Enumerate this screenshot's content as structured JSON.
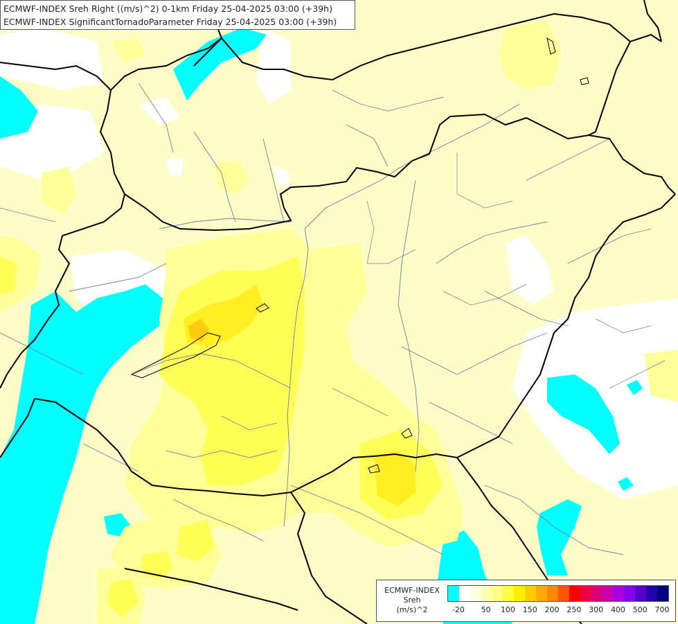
{
  "header": {
    "line1": "ECMWF-INDEX Sreh Right ((m/s)^2) 0-1km Friday 25-04-2025 03:00 (+39h)",
    "line2": "ECMWF-INDEX SignificantTornadoParameter Friday 25-04-2025 03:00 (+39h)"
  },
  "legend": {
    "line1": "ECMWF-INDEX",
    "line2": "Sreh",
    "line3": "(m/s)^2",
    "colors": [
      "#00ffff",
      "#ffffff",
      "#ffffe0",
      "#ffffb0",
      "#ffff80",
      "#ffff40",
      "#ffee00",
      "#ffcc00",
      "#ffaa00",
      "#ff8800",
      "#ff5500",
      "#ff0000",
      "#ee0044",
      "#dd0077",
      "#cc00aa",
      "#aa00dd",
      "#8800ee",
      "#5500cc",
      "#2200aa",
      "#000080"
    ],
    "ticks": [
      {
        "value": "-20",
        "index": 0.5
      },
      {
        "value": "50",
        "index": 3
      },
      {
        "value": "100",
        "index": 5
      },
      {
        "value": "150",
        "index": 7
      },
      {
        "value": "200",
        "index": 9
      },
      {
        "value": "250",
        "index": 11
      },
      {
        "value": "300",
        "index": 13
      },
      {
        "value": "400",
        "index": 15
      },
      {
        "value": "500",
        "index": 17
      },
      {
        "value": "700",
        "index": 19
      }
    ]
  },
  "fields": {
    "cyan": "#00ffff",
    "white": "#ffffff",
    "pale": "#fdfdc8",
    "light_yellow": "#ffff99",
    "mid_yellow": "#ffff55",
    "yellow": "#ffee22",
    "orange": "#ffcc11",
    "border": "#000000",
    "river": "#6c7ea0"
  }
}
